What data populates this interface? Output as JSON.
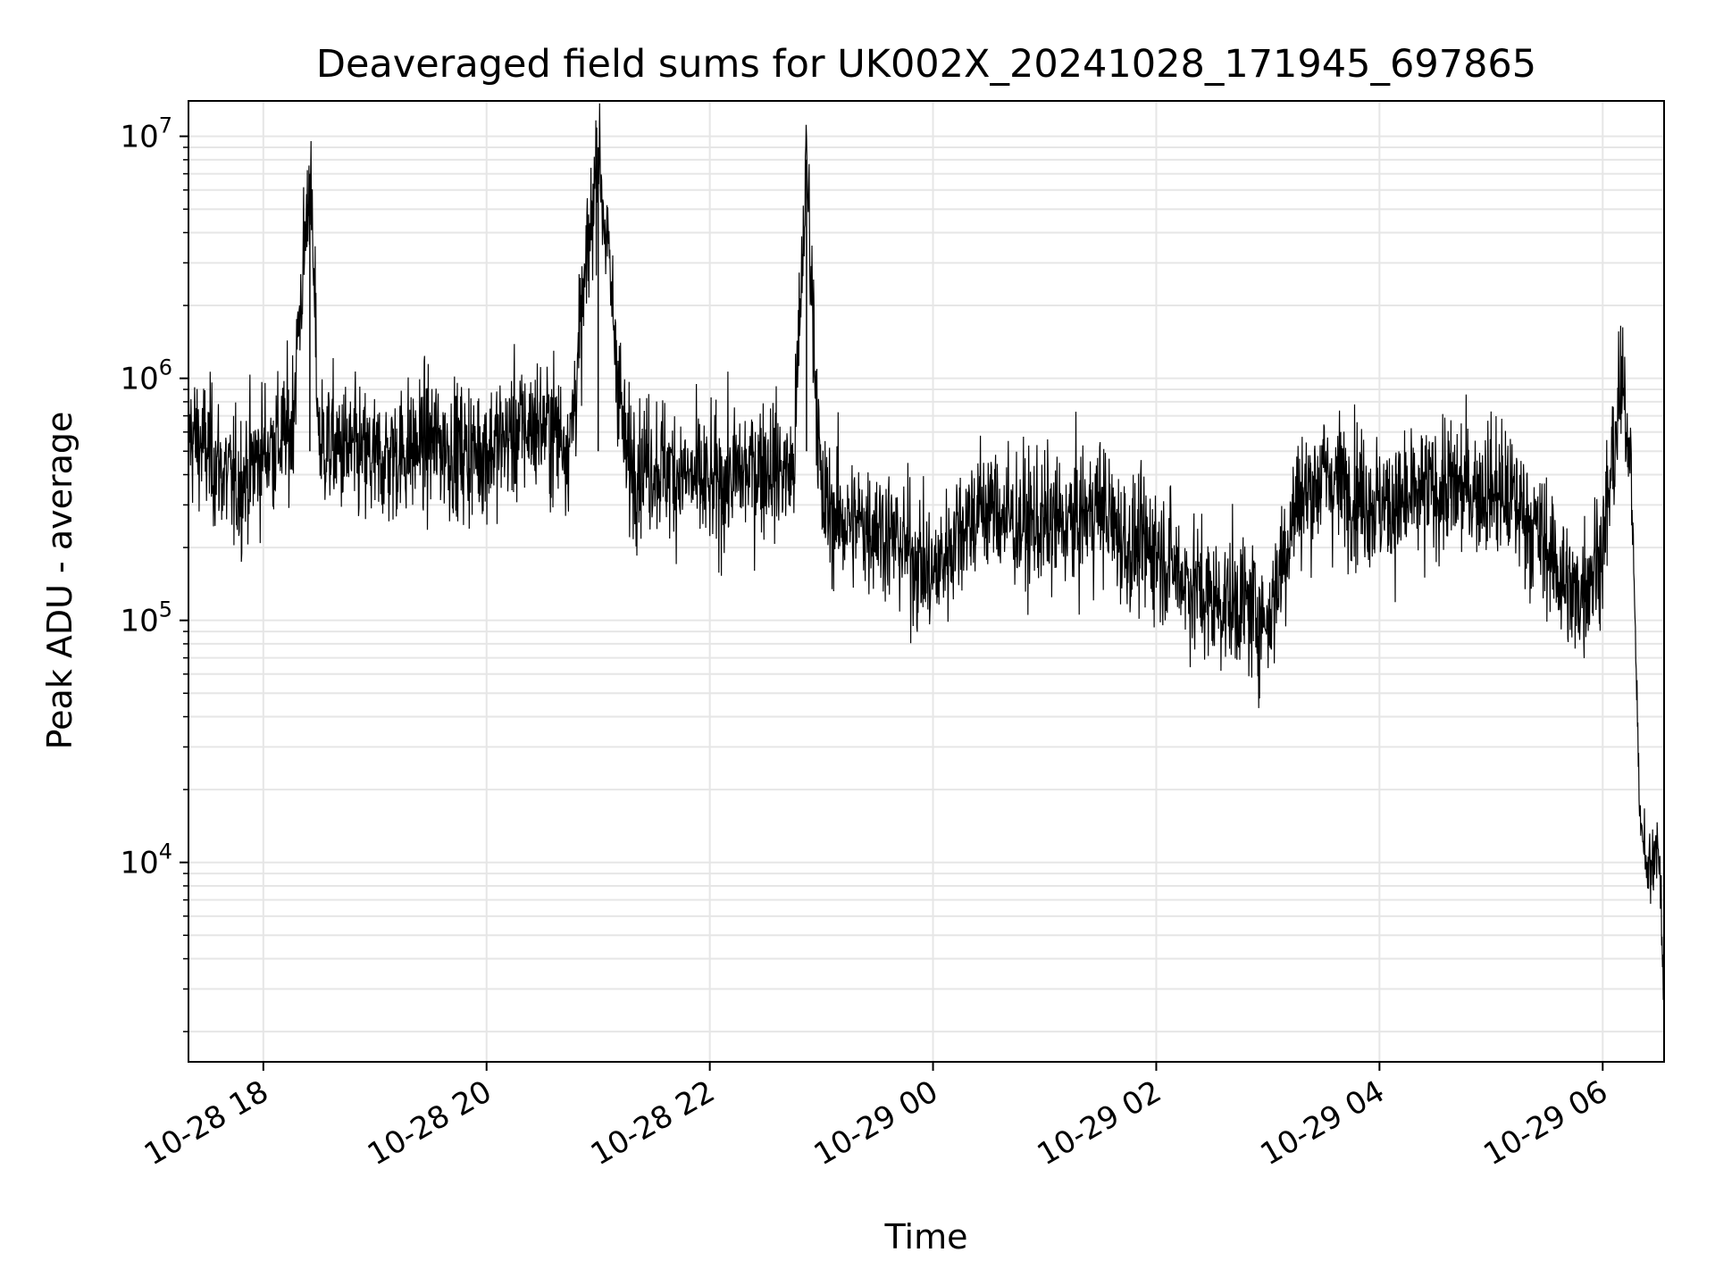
{
  "chart_data": {
    "type": "line",
    "title": "Deaveraged field sums for UK002X_20241028_171945_697865",
    "xlabel": "Time",
    "ylabel": "Peak ADU - average",
    "x_axis": {
      "kind": "datetime",
      "min": "2024-10-28T17:19:45",
      "max": "2024-10-29T06:33:00",
      "ticks": [
        {
          "t": "2024-10-28T18:00",
          "label": "10-28 18"
        },
        {
          "t": "2024-10-28T20:00",
          "label": "10-28 20"
        },
        {
          "t": "2024-10-28T22:00",
          "label": "10-28 22"
        },
        {
          "t": "2024-10-29T00:00",
          "label": "10-29 00"
        },
        {
          "t": "2024-10-29T02:00",
          "label": "10-29 02"
        },
        {
          "t": "2024-10-29T04:00",
          "label": "10-29 04"
        },
        {
          "t": "2024-10-29T06:00",
          "label": "10-29 06"
        }
      ]
    },
    "y_axis": {
      "scale": "log",
      "ylim": [
        1500,
        14000000
      ],
      "major_ticks": [
        {
          "value": 10000,
          "base": "10",
          "exp": "4"
        },
        {
          "value": 100000,
          "base": "10",
          "exp": "5"
        },
        {
          "value": 1000000,
          "base": "10",
          "exp": "6"
        },
        {
          "value": 10000000,
          "base": "10",
          "exp": "7"
        }
      ]
    },
    "grid": true,
    "series": [
      {
        "color": "#000000",
        "x": [
          "2024-10-28T17:19:45",
          "2024-10-28T17:30",
          "2024-10-28T17:45",
          "2024-10-28T18:00",
          "2024-10-28T18:15",
          "2024-10-28T18:25",
          "2024-10-28T18:30",
          "2024-10-28T18:45",
          "2024-10-28T19:00",
          "2024-10-28T19:15",
          "2024-10-28T19:30",
          "2024-10-28T19:45",
          "2024-10-28T20:00",
          "2024-10-28T20:15",
          "2024-10-28T20:30",
          "2024-10-28T20:45",
          "2024-10-28T21:00",
          "2024-10-28T21:15",
          "2024-10-28T21:30",
          "2024-10-28T21:45",
          "2024-10-28T22:00",
          "2024-10-28T22:15",
          "2024-10-28T22:30",
          "2024-10-28T22:45",
          "2024-10-28T22:52",
          "2024-10-28T23:00",
          "2024-10-28T23:15",
          "2024-10-28T23:30",
          "2024-10-28T23:45",
          "2024-10-29T00:00",
          "2024-10-29T00:15",
          "2024-10-29T00:30",
          "2024-10-29T00:45",
          "2024-10-29T01:00",
          "2024-10-29T01:15",
          "2024-10-29T01:30",
          "2024-10-29T01:45",
          "2024-10-29T02:00",
          "2024-10-29T02:15",
          "2024-10-29T02:30",
          "2024-10-29T02:45",
          "2024-10-29T03:00",
          "2024-10-29T03:15",
          "2024-10-29T03:30",
          "2024-10-29T03:45",
          "2024-10-29T04:00",
          "2024-10-29T04:15",
          "2024-10-29T04:30",
          "2024-10-29T04:45",
          "2024-10-29T05:00",
          "2024-10-29T05:15",
          "2024-10-29T05:30",
          "2024-10-29T05:45",
          "2024-10-29T06:00",
          "2024-10-29T06:10",
          "2024-10-29T06:15",
          "2024-10-29T06:20",
          "2024-10-29T06:25",
          "2024-10-29T06:30",
          "2024-10-29T06:33"
        ],
        "y": [
          600000,
          500000,
          350000,
          500000,
          600000,
          7000000,
          550000,
          500000,
          450000,
          500000,
          550000,
          500000,
          500000,
          600000,
          650000,
          550000,
          9000000,
          450000,
          450000,
          400000,
          350000,
          400000,
          450000,
          400000,
          8000000,
          300000,
          250000,
          250000,
          200000,
          150000,
          250000,
          300000,
          250000,
          250000,
          250000,
          300000,
          200000,
          200000,
          150000,
          120000,
          120000,
          100000,
          300000,
          400000,
          350000,
          300000,
          300000,
          350000,
          350000,
          350000,
          300000,
          200000,
          120000,
          200000,
          900000,
          500000,
          15000,
          10000,
          12000,
          3000
        ]
      }
    ]
  }
}
